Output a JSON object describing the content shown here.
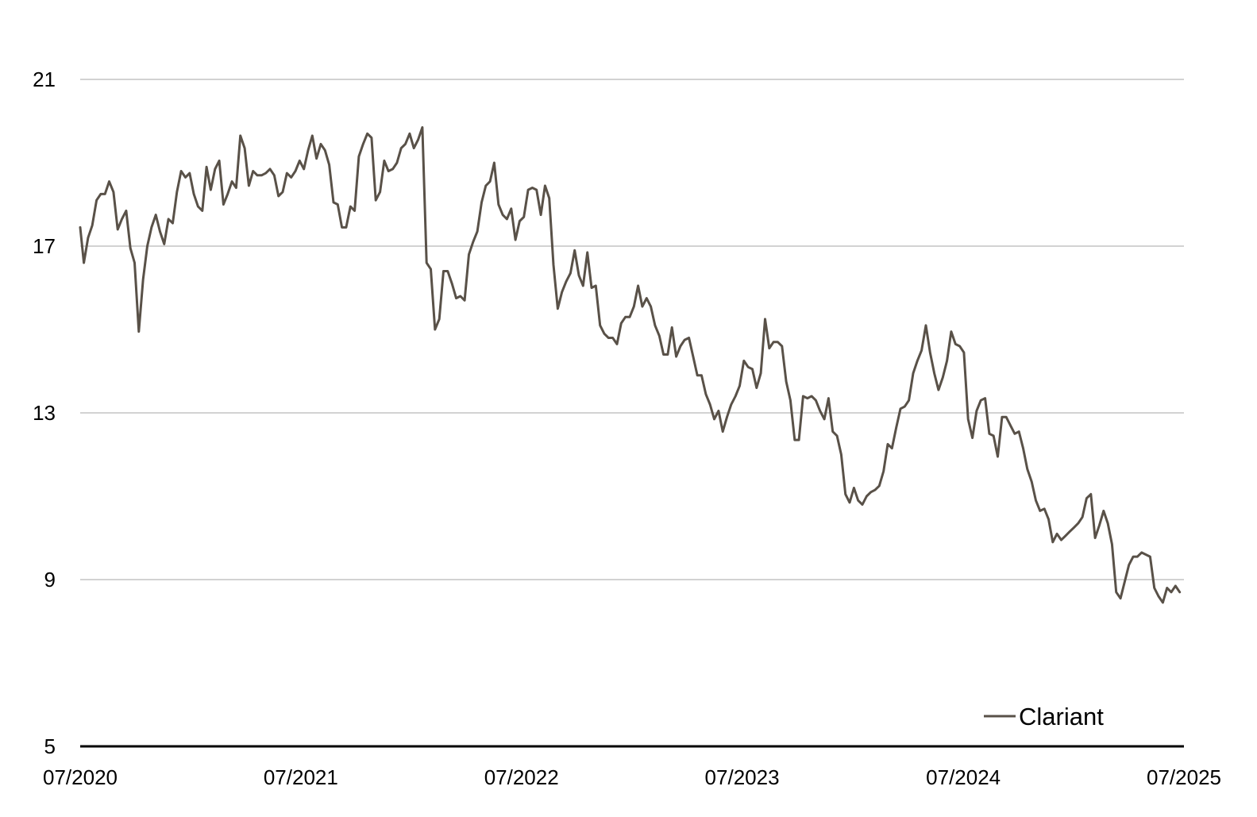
{
  "chart_data": {
    "type": "line",
    "title": "",
    "xlabel": "",
    "ylabel": "",
    "ylim": [
      5,
      21
    ],
    "yticks": [
      5,
      9,
      13,
      17,
      21
    ],
    "x_range": [
      "07/2020",
      "07/2025"
    ],
    "xtick_labels": [
      "07/2020",
      "07/2021",
      "07/2022",
      "07/2023",
      "07/2024",
      "07/2025"
    ],
    "grid": "horizontal",
    "legend_position": "bottom-right",
    "series": [
      {
        "name": "Clariant",
        "color": "#595148",
        "x": [
          "2020-07-01",
          "2020-07-07",
          "2020-07-14",
          "2020-07-21",
          "2020-07-28",
          "2020-08-04",
          "2020-08-11",
          "2020-08-18",
          "2020-08-25",
          "2020-09-01",
          "2020-09-08",
          "2020-09-15",
          "2020-09-22",
          "2020-09-29",
          "2020-10-06",
          "2020-10-13",
          "2020-10-20",
          "2020-10-27",
          "2020-11-03",
          "2020-11-10",
          "2020-11-17",
          "2020-11-24",
          "2020-12-01",
          "2020-12-08",
          "2020-12-15",
          "2020-12-22",
          "2020-12-29",
          "2021-01-05",
          "2021-01-12",
          "2021-01-19",
          "2021-01-26",
          "2021-02-02",
          "2021-02-09",
          "2021-02-16",
          "2021-02-23",
          "2021-03-02",
          "2021-03-09",
          "2021-03-16",
          "2021-03-23",
          "2021-03-30",
          "2021-04-06",
          "2021-04-13",
          "2021-04-20",
          "2021-04-27",
          "2021-05-04",
          "2021-05-11",
          "2021-05-18",
          "2021-05-25",
          "2021-06-01",
          "2021-06-08",
          "2021-06-15",
          "2021-06-22",
          "2021-06-29",
          "2021-07-06",
          "2021-07-13",
          "2021-07-20",
          "2021-07-27",
          "2021-08-03",
          "2021-08-10",
          "2021-08-17",
          "2021-08-24",
          "2021-08-31",
          "2021-09-07",
          "2021-09-14",
          "2021-09-21",
          "2021-09-28",
          "2021-10-05",
          "2021-10-12",
          "2021-10-19",
          "2021-10-26",
          "2021-11-02",
          "2021-11-09",
          "2021-11-16",
          "2021-11-23",
          "2021-11-30",
          "2021-12-07",
          "2021-12-14",
          "2021-12-21",
          "2021-12-28",
          "2022-01-04",
          "2022-01-11",
          "2022-01-18",
          "2022-01-25",
          "2022-02-01",
          "2022-02-08",
          "2022-02-15",
          "2022-02-22",
          "2022-03-01",
          "2022-03-08",
          "2022-03-15",
          "2022-03-22",
          "2022-03-29",
          "2022-04-05",
          "2022-04-12",
          "2022-04-19",
          "2022-04-26",
          "2022-05-03",
          "2022-05-10",
          "2022-05-17",
          "2022-05-24",
          "2022-05-31",
          "2022-06-07",
          "2022-06-14",
          "2022-06-21",
          "2022-06-28",
          "2022-07-05",
          "2022-07-12",
          "2022-07-19",
          "2022-07-26",
          "2022-08-02",
          "2022-08-09",
          "2022-08-16",
          "2022-08-23",
          "2022-08-30",
          "2022-09-06",
          "2022-09-13",
          "2022-09-20",
          "2022-09-27",
          "2022-10-04",
          "2022-10-11",
          "2022-10-18",
          "2022-10-25",
          "2022-11-01",
          "2022-11-08",
          "2022-11-15",
          "2022-11-22",
          "2022-11-29",
          "2022-12-06",
          "2022-12-13",
          "2022-12-20",
          "2022-12-27",
          "2023-01-03",
          "2023-01-10",
          "2023-01-17",
          "2023-01-24",
          "2023-01-31",
          "2023-02-07",
          "2023-02-14",
          "2023-02-21",
          "2023-02-28",
          "2023-03-07",
          "2023-03-14",
          "2023-03-21",
          "2023-03-28",
          "2023-04-04",
          "2023-04-11",
          "2023-04-18",
          "2023-04-25",
          "2023-05-02",
          "2023-05-09",
          "2023-05-16",
          "2023-05-23",
          "2023-05-30",
          "2023-06-06",
          "2023-06-13",
          "2023-06-20",
          "2023-06-27",
          "2023-07-04",
          "2023-07-11",
          "2023-07-18",
          "2023-07-25",
          "2023-08-01",
          "2023-08-08",
          "2023-08-15",
          "2023-08-22",
          "2023-08-29",
          "2023-09-05",
          "2023-09-12",
          "2023-09-19",
          "2023-09-26",
          "2023-10-03",
          "2023-10-10",
          "2023-10-17",
          "2023-10-24",
          "2023-10-31",
          "2023-11-07",
          "2023-11-14",
          "2023-11-21",
          "2023-11-28",
          "2023-12-05",
          "2023-12-12",
          "2023-12-19",
          "2023-12-26",
          "2024-01-02",
          "2024-01-09",
          "2024-01-16",
          "2024-01-23",
          "2024-01-30",
          "2024-02-06",
          "2024-02-13",
          "2024-02-20",
          "2024-02-27",
          "2024-03-05",
          "2024-03-12",
          "2024-03-19",
          "2024-03-26",
          "2024-04-02",
          "2024-04-09",
          "2024-04-16",
          "2024-04-23",
          "2024-04-30",
          "2024-05-07",
          "2024-05-14",
          "2024-05-21",
          "2024-05-28",
          "2024-06-04",
          "2024-06-11",
          "2024-06-18",
          "2024-06-25",
          "2024-07-02",
          "2024-07-09",
          "2024-07-16",
          "2024-07-23",
          "2024-07-30",
          "2024-08-06",
          "2024-08-13",
          "2024-08-20",
          "2024-08-27",
          "2024-09-03",
          "2024-09-10",
          "2024-09-17",
          "2024-09-24",
          "2024-10-01",
          "2024-10-08",
          "2024-10-15",
          "2024-10-22",
          "2024-10-29",
          "2024-11-05",
          "2024-11-12",
          "2024-11-19",
          "2024-11-26",
          "2024-12-03",
          "2024-12-10",
          "2024-12-17",
          "2024-12-24",
          "2024-12-31",
          "2025-01-07",
          "2025-01-14",
          "2025-01-21",
          "2025-01-28",
          "2025-02-04",
          "2025-02-11",
          "2025-02-18",
          "2025-02-25",
          "2025-03-04",
          "2025-03-11",
          "2025-03-18",
          "2025-03-25",
          "2025-04-01",
          "2025-04-08",
          "2025-04-15",
          "2025-04-22",
          "2025-04-29",
          "2025-05-06",
          "2025-05-13",
          "2025-05-20",
          "2025-05-27",
          "2025-06-03",
          "2025-06-10",
          "2025-06-17",
          "2025-06-24"
        ],
        "values": [
          17.45,
          16.6,
          17.2,
          17.5,
          18.1,
          18.25,
          18.25,
          18.55,
          18.3,
          17.4,
          17.65,
          17.85,
          16.95,
          16.6,
          14.95,
          16.2,
          17.0,
          17.45,
          17.75,
          17.35,
          17.05,
          17.65,
          17.55,
          18.3,
          18.8,
          18.65,
          18.75,
          18.25,
          17.95,
          17.85,
          18.9,
          18.35,
          18.85,
          19.05,
          18.0,
          18.25,
          18.55,
          18.4,
          19.65,
          19.35,
          18.45,
          18.8,
          18.7,
          18.7,
          18.75,
          18.85,
          18.7,
          18.2,
          18.3,
          18.75,
          18.65,
          18.8,
          19.05,
          18.85,
          19.3,
          19.65,
          19.1,
          19.45,
          19.3,
          18.95,
          18.05,
          18.0,
          17.45,
          17.45,
          17.95,
          17.85,
          19.15,
          19.45,
          19.7,
          19.6,
          18.1,
          18.3,
          19.05,
          18.8,
          18.85,
          19.0,
          19.35,
          19.45,
          19.7,
          19.35,
          19.55,
          19.85,
          16.6,
          16.45,
          15.0,
          15.25,
          16.4,
          16.4,
          16.1,
          15.75,
          15.8,
          15.7,
          16.8,
          17.1,
          17.35,
          18.05,
          18.45,
          18.55,
          19.0,
          18.0,
          17.75,
          17.65,
          17.9,
          17.15,
          17.6,
          17.7,
          18.35,
          18.4,
          18.35,
          17.75,
          18.45,
          18.15,
          16.55,
          15.5,
          15.9,
          16.15,
          16.35,
          16.9,
          16.3,
          16.05,
          16.85,
          16.0,
          16.05,
          15.1,
          14.9,
          14.8,
          14.8,
          14.65,
          15.15,
          15.3,
          15.3,
          15.55,
          16.05,
          15.55,
          15.75,
          15.55,
          15.1,
          14.85,
          14.4,
          14.4,
          15.05,
          14.35,
          14.6,
          14.75,
          14.8,
          14.35,
          13.9,
          13.9,
          13.45,
          13.2,
          12.85,
          13.05,
          12.55,
          12.9,
          13.2,
          13.4,
          13.65,
          14.25,
          14.1,
          14.05,
          13.6,
          13.95,
          15.25,
          14.55,
          14.7,
          14.7,
          14.6,
          13.75,
          13.3,
          12.35,
          12.35,
          13.4,
          13.35,
          13.4,
          13.3,
          13.05,
          12.85,
          13.35,
          12.55,
          12.45,
          12.0,
          11.05,
          10.85,
          11.2,
          10.9,
          10.8,
          11.0,
          11.1,
          11.15,
          11.25,
          11.6,
          12.25,
          12.15,
          12.65,
          13.1,
          13.15,
          13.3,
          13.95,
          14.25,
          14.5,
          15.1,
          14.45,
          13.95,
          13.55,
          13.85,
          14.25,
          14.95,
          14.65,
          14.6,
          14.45,
          12.85,
          12.4,
          13.05,
          13.3,
          13.35,
          12.5,
          12.45,
          11.95,
          12.9,
          12.9,
          12.7,
          12.5,
          12.55,
          12.15,
          11.65,
          11.35,
          10.9,
          10.65,
          10.7,
          10.45,
          9.9,
          10.1,
          9.95,
          10.05,
          10.15,
          10.25,
          10.35,
          10.5,
          10.95,
          11.05,
          10.0,
          10.3,
          10.65,
          10.35,
          9.85,
          8.7,
          8.55,
          8.95,
          9.35,
          9.55,
          9.55,
          9.65,
          9.6,
          9.55,
          8.8,
          8.6,
          8.45,
          8.8,
          8.7,
          8.85,
          8.7
        ]
      }
    ]
  }
}
